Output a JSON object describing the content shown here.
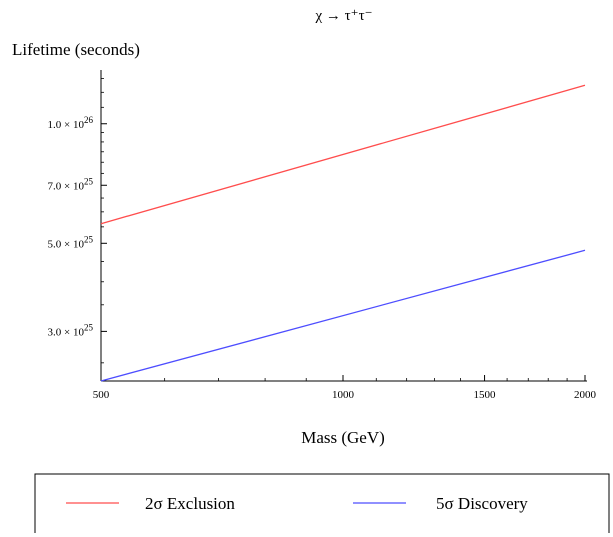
{
  "chart_data": {
    "type": "line",
    "title": "χ → τ⁺τ⁻",
    "xlabel": "Mass (GeV)",
    "ylabel": "Lifetime (seconds)",
    "x_scale": "log",
    "y_scale": "log",
    "xlim": [
      500,
      2000
    ],
    "ylim": [
      2.25e+25,
      1.35e+26
    ],
    "x_ticks": [
      {
        "value": 500,
        "label": "500"
      },
      {
        "value": 1000,
        "label": "1000"
      },
      {
        "value": 1500,
        "label": "1500"
      },
      {
        "value": 2000,
        "label": "2000"
      }
    ],
    "y_ticks": [
      {
        "value": 3e+25,
        "mantissa": "3.0",
        "base": "× 10",
        "exp": "25"
      },
      {
        "value": 5e+25,
        "mantissa": "5.0",
        "base": "× 10",
        "exp": "25"
      },
      {
        "value": 7e+25,
        "mantissa": "7.0",
        "base": "× 10",
        "exp": "25"
      },
      {
        "value": 1e+26,
        "mantissa": "1.0",
        "base": "× 10",
        "exp": "26"
      }
    ],
    "grid": false,
    "legend_position": "bottom",
    "series": [
      {
        "name": "2σ Exclusion",
        "color": "#ff4d4d",
        "x": [
          500,
          2000
        ],
        "y": [
          5.6e+25,
          1.25e+26
        ]
      },
      {
        "name": "5σ Discovery",
        "color": "#4d4dff",
        "x": [
          500,
          2000
        ],
        "y": [
          2.25e+25,
          4.8e+25
        ]
      }
    ]
  }
}
